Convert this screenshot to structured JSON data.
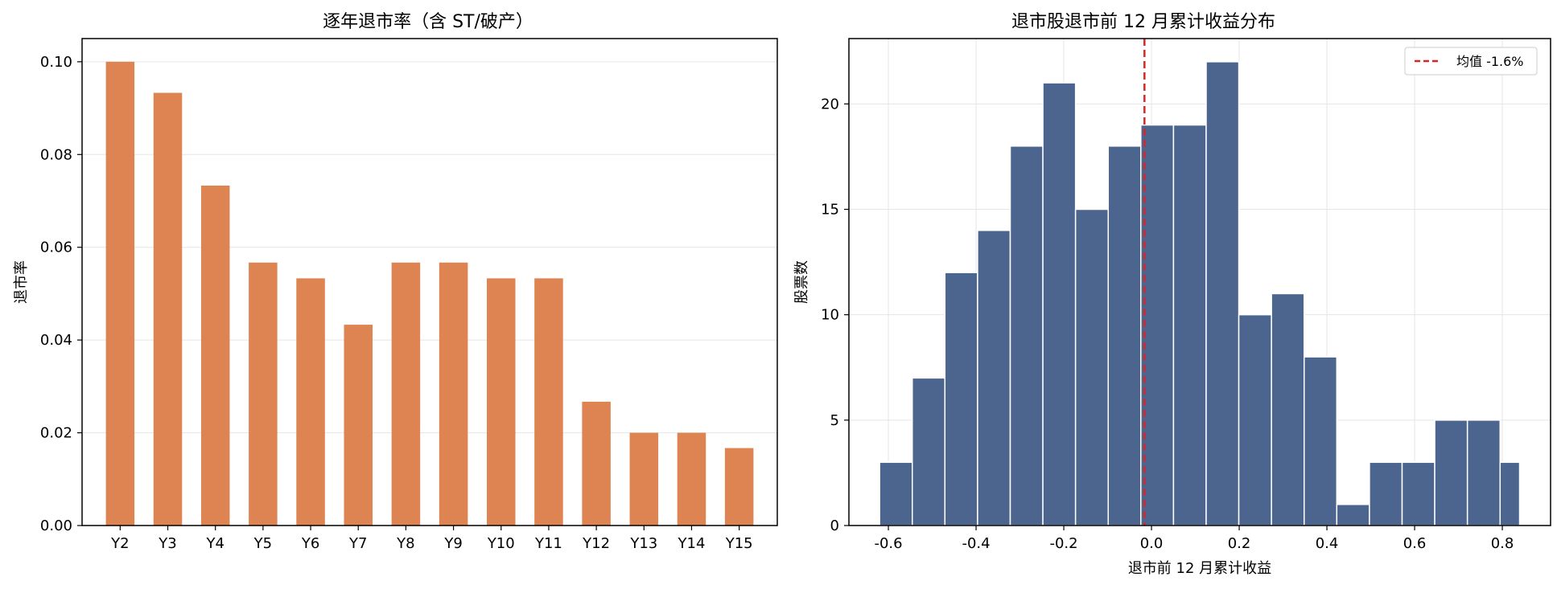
{
  "chart_data": [
    {
      "type": "bar",
      "title": "逐年退市率（含 ST/破产）",
      "xlabel": "",
      "ylabel": "退市率",
      "categories": [
        "Y2",
        "Y3",
        "Y4",
        "Y5",
        "Y6",
        "Y7",
        "Y8",
        "Y9",
        "Y10",
        "Y11",
        "Y12",
        "Y13",
        "Y14",
        "Y15"
      ],
      "values": [
        0.1,
        0.0933,
        0.0733,
        0.0567,
        0.0533,
        0.0433,
        0.0567,
        0.0567,
        0.0533,
        0.0533,
        0.0267,
        0.02,
        0.02,
        0.0167
      ],
      "ylim": [
        0,
        0.105
      ],
      "yticks": [
        0.0,
        0.02,
        0.04,
        0.06,
        0.08,
        0.1
      ],
      "ytick_labels": [
        "0.00",
        "0.02",
        "0.04",
        "0.06",
        "0.08",
        "0.10"
      ],
      "grid": "y",
      "color": "#dd8452"
    },
    {
      "type": "histogram",
      "title": "退市股退市前 12 月累计收益分布",
      "xlabel": "退市前 12 月累计收益",
      "ylabel": "股票数",
      "bin_edges": [
        -0.62,
        -0.5455,
        -0.4711,
        -0.3966,
        -0.3221,
        -0.2477,
        -0.1732,
        -0.0987,
        -0.0243,
        0.0502,
        0.1247,
        0.1991,
        0.2736,
        0.3481,
        0.4225,
        0.497,
        0.5715,
        0.6459,
        0.7204,
        0.7949,
        0.8394
      ],
      "counts": [
        3,
        7,
        12,
        14,
        18,
        21,
        15,
        18,
        19,
        19,
        22,
        10,
        11,
        8,
        1,
        3,
        3,
        5,
        5,
        3
      ],
      "xlim": [
        -0.69,
        0.91
      ],
      "ylim": [
        0,
        23.1
      ],
      "xticks": [
        -0.6,
        -0.4,
        -0.2,
        0.0,
        0.2,
        0.4,
        0.6,
        0.8
      ],
      "xtick_labels": [
        "-0.6",
        "-0.4",
        "-0.2",
        "0.0",
        "0.2",
        "0.4",
        "0.6",
        "0.8"
      ],
      "yticks": [
        0,
        5,
        10,
        15,
        20
      ],
      "ytick_labels": [
        "0",
        "5",
        "10",
        "15",
        "20"
      ],
      "mean_line": {
        "x": -0.016,
        "label": "均值 -1.6%",
        "color": "#d62728"
      },
      "legend_position": "top-right",
      "grid": "both",
      "color": "#4c658f"
    }
  ]
}
